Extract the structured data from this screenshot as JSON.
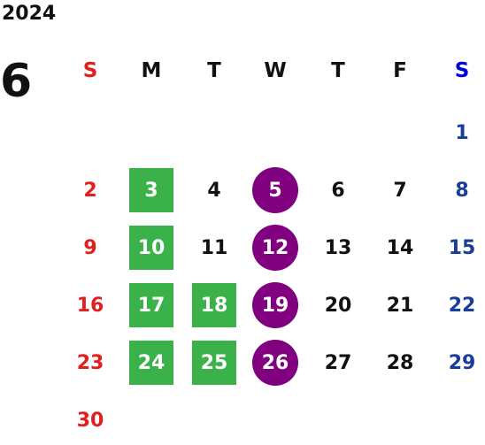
{
  "calendar": {
    "year": "2024",
    "month": "6",
    "weekday_headers": [
      "S",
      "M",
      "T",
      "W",
      "T",
      "F",
      "S"
    ],
    "colors": {
      "sunday": "#e0201e",
      "saturday": "#1a3d9a",
      "weekday": "#111111",
      "green_highlight": "#3bb14a",
      "purple_highlight": "#800080",
      "saturday_header": "#0000dd"
    },
    "weeks": [
      [
        null,
        null,
        null,
        null,
        null,
        null,
        {
          "day": "1"
        }
      ],
      [
        {
          "day": "2"
        },
        {
          "day": "3",
          "highlight": "green"
        },
        {
          "day": "4"
        },
        {
          "day": "5",
          "highlight": "purple"
        },
        {
          "day": "6"
        },
        {
          "day": "7"
        },
        {
          "day": "8"
        }
      ],
      [
        {
          "day": "9"
        },
        {
          "day": "10",
          "highlight": "green"
        },
        {
          "day": "11"
        },
        {
          "day": "12",
          "highlight": "purple"
        },
        {
          "day": "13"
        },
        {
          "day": "14"
        },
        {
          "day": "15"
        }
      ],
      [
        {
          "day": "16"
        },
        {
          "day": "17",
          "highlight": "green"
        },
        {
          "day": "18",
          "highlight": "green"
        },
        {
          "day": "19",
          "highlight": "purple"
        },
        {
          "day": "20"
        },
        {
          "day": "21"
        },
        {
          "day": "22"
        }
      ],
      [
        {
          "day": "23"
        },
        {
          "day": "24",
          "highlight": "green"
        },
        {
          "day": "25",
          "highlight": "green"
        },
        {
          "day": "26",
          "highlight": "purple"
        },
        {
          "day": "27"
        },
        {
          "day": "28"
        },
        {
          "day": "29"
        }
      ],
      [
        {
          "day": "30"
        },
        null,
        null,
        null,
        null,
        null,
        null
      ]
    ]
  }
}
